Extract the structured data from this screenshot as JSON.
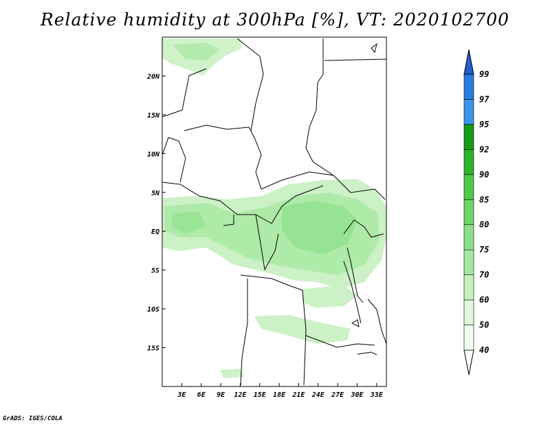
{
  "title": "Relative humidity at 300hPa [%], VT: 2020102700",
  "credit": "GrADS: IGES/COLA",
  "map": {
    "lon_range": [
      0,
      34.5
    ],
    "lat_range": [
      -20,
      25
    ],
    "lon_ticks": [
      "3E",
      "6E",
      "9E",
      "12E",
      "15E",
      "18E",
      "21E",
      "24E",
      "27E",
      "30E",
      "33E"
    ],
    "lat_ticks": [
      "20N",
      "15N",
      "10N",
      "5N",
      "EQ",
      "5S",
      "10S",
      "15S"
    ],
    "land_color": "#ffffff",
    "boundary_color": "#000000"
  },
  "colorbar": {
    "levels": [
      "40",
      "50",
      "60",
      "70",
      "75",
      "80",
      "85",
      "90",
      "92",
      "95",
      "97",
      "99"
    ],
    "colors": [
      "#f0fff0",
      "#e0f8dc",
      "#c8f0c0",
      "#a6e8a0",
      "#8ce08a",
      "#6ed46c",
      "#50c84e",
      "#2fb22c",
      "#1a9a18",
      "#3c95e8",
      "#2a7ae0",
      "#1e5fd0"
    ],
    "low_cap_color": "#ffffff",
    "high_cap_color": "#1e5fd0"
  }
}
